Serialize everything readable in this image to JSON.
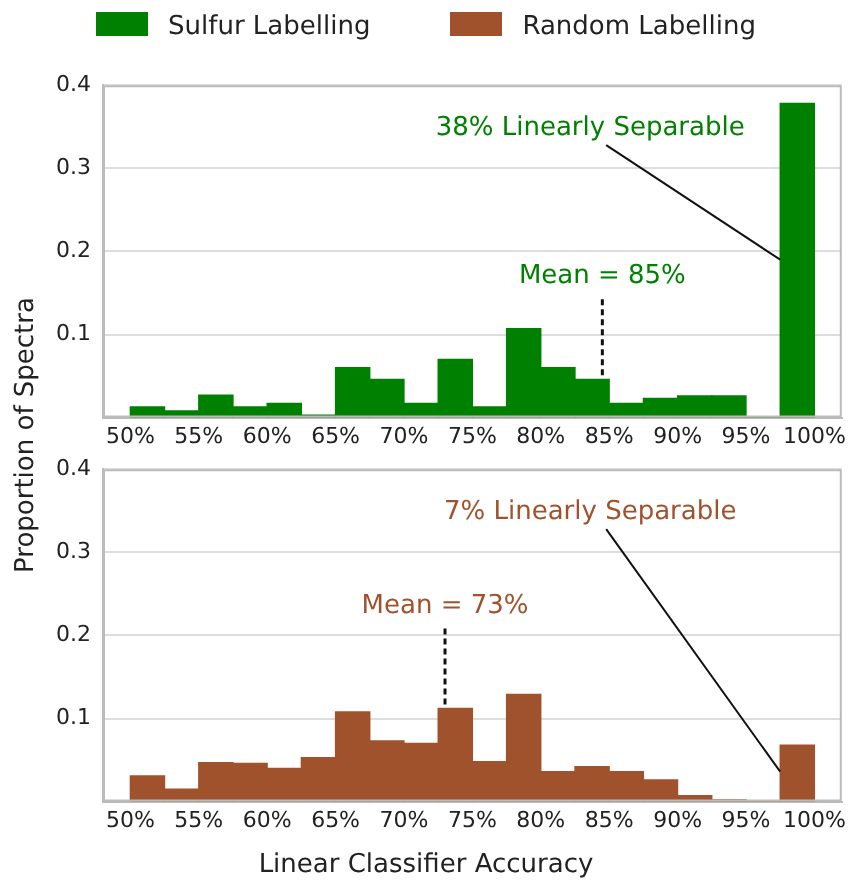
{
  "chart_data": [
    {
      "type": "histogram",
      "ylabel": "Proportion of Spectra",
      "legend": "top",
      "grid": "y",
      "bins": [
        50,
        52.5,
        55,
        57.5,
        60,
        62.5,
        65,
        67.5,
        70,
        72.5,
        75,
        77.5,
        80,
        82.5,
        85,
        87.5,
        90,
        92.5,
        95,
        97.5,
        100
      ],
      "series": [
        {
          "name": "Sulfur Labelling",
          "color": "#008000",
          "values": [
            0.013,
            0.008,
            0.027,
            0.013,
            0.017,
            0.003,
            0.06,
            0.046,
            0.017,
            0.07,
            0.013,
            0.107,
            0.06,
            0.046,
            0.017,
            0.023,
            0.026,
            0.026,
            0,
            0.378
          ]
        }
      ],
      "xlim": [
        48,
        102
      ],
      "ylim": [
        0,
        0.4
      ],
      "xticks": [
        {
          "value": 50,
          "label": "50%"
        },
        {
          "value": 55,
          "label": "55%"
        },
        {
          "value": 60,
          "label": "60%"
        },
        {
          "value": 65,
          "label": "65%"
        },
        {
          "value": 70,
          "label": "70%"
        },
        {
          "value": 75,
          "label": "75%"
        },
        {
          "value": 80,
          "label": "80%"
        },
        {
          "value": 85,
          "label": "85%"
        },
        {
          "value": 90,
          "label": "90%"
        },
        {
          "value": 95,
          "label": "95%"
        },
        {
          "value": 100,
          "label": "100%"
        }
      ],
      "yticks": [
        0.1,
        0.2,
        0.3,
        0.4
      ],
      "annotations": [
        {
          "text": "38% Linearly Separable",
          "x": 97.5,
          "y": 0.19
        },
        {
          "text": "Mean = 85%",
          "x": 84.5,
          "y": 0.046
        }
      ]
    },
    {
      "type": "histogram",
      "xlabel": "Linear Classifier Accuracy",
      "legend": "top",
      "grid": "y",
      "bins": [
        50,
        52.5,
        55,
        57.5,
        60,
        62.5,
        65,
        67.5,
        70,
        72.5,
        75,
        77.5,
        80,
        82.5,
        85,
        87.5,
        90,
        92.5,
        95,
        97.5,
        100
      ],
      "series": [
        {
          "name": "Random Labelling",
          "color": "#a0522d",
          "values": [
            0.031,
            0.015,
            0.047,
            0.046,
            0.04,
            0.053,
            0.108,
            0.073,
            0.07,
            0.112,
            0.048,
            0.129,
            0.036,
            0.042,
            0.036,
            0.026,
            0.007,
            0.002,
            0,
            0.068
          ]
        }
      ],
      "xlim": [
        48,
        102
      ],
      "ylim": [
        0,
        0.4
      ],
      "xticks": [
        {
          "value": 50,
          "label": "50%"
        },
        {
          "value": 55,
          "label": "55%"
        },
        {
          "value": 60,
          "label": "60%"
        },
        {
          "value": 65,
          "label": "65%"
        },
        {
          "value": 70,
          "label": "70%"
        },
        {
          "value": 75,
          "label": "75%"
        },
        {
          "value": 80,
          "label": "80%"
        },
        {
          "value": 85,
          "label": "85%"
        },
        {
          "value": 90,
          "label": "90%"
        },
        {
          "value": 95,
          "label": "95%"
        },
        {
          "value": 100,
          "label": "100%"
        }
      ],
      "yticks": [
        0.1,
        0.2,
        0.3,
        0.4
      ],
      "annotations": [
        {
          "text": "7% Linearly Separable",
          "x": 97.5,
          "y": 0.036
        },
        {
          "text": "Mean = 73%",
          "x": 73,
          "y": 0.112
        }
      ]
    }
  ]
}
